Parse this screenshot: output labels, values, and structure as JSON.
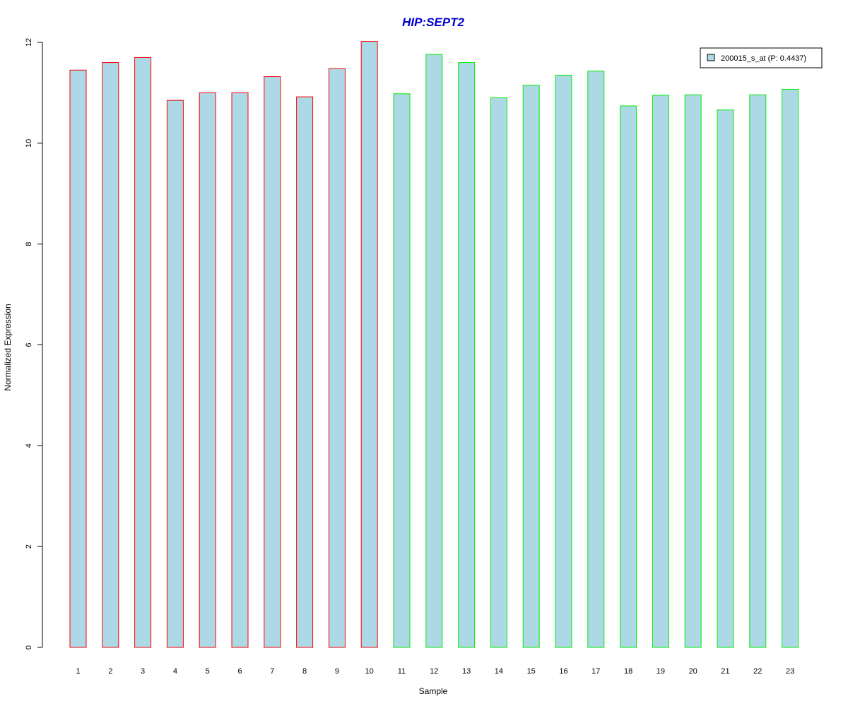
{
  "chart_data": {
    "type": "bar",
    "title": "HIP:SEPT2",
    "xlabel": "Sample",
    "ylabel": "Normalized Expression",
    "categories": [
      "1",
      "2",
      "3",
      "4",
      "5",
      "6",
      "7",
      "8",
      "9",
      "10",
      "11",
      "12",
      "13",
      "14",
      "15",
      "16",
      "17",
      "18",
      "19",
      "20",
      "21",
      "22",
      "23"
    ],
    "series": [
      {
        "name": "200015_s_at (P: 0.4437)",
        "values": [
          11.45,
          11.6,
          11.7,
          10.85,
          11.0,
          11.0,
          11.32,
          10.92,
          11.48,
          12.02,
          10.98,
          11.76,
          11.6,
          10.9,
          11.15,
          11.35,
          11.43,
          10.74,
          10.95,
          10.96,
          10.66,
          10.96,
          11.07
        ]
      }
    ],
    "ylim": [
      0,
      12
    ],
    "yticks": [
      "0",
      "2",
      "4",
      "6",
      "8",
      "10",
      "12"
    ],
    "grid": false,
    "legend_position": "top-right",
    "group_sizes": [
      10,
      13
    ],
    "colors": {
      "title": "#0000cc",
      "bar_fill": "#add8e6",
      "group_1_border": "#ff0000",
      "group_2_border": "#00ee00",
      "axis": "#000000"
    }
  }
}
